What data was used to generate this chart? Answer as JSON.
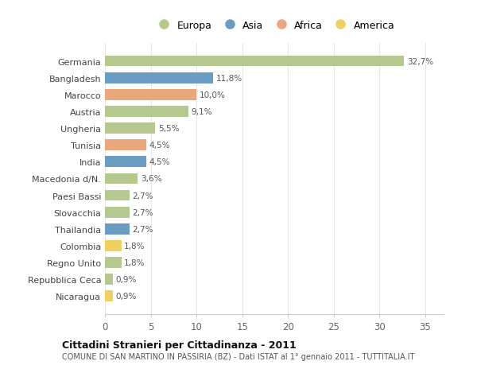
{
  "categories": [
    "Germania",
    "Bangladesh",
    "Marocco",
    "Austria",
    "Ungheria",
    "Tunisia",
    "India",
    "Macedonia d/N.",
    "Paesi Bassi",
    "Slovacchia",
    "Thailandia",
    "Colombia",
    "Regno Unito",
    "Repubblica Ceca",
    "Nicaragua"
  ],
  "values": [
    32.7,
    11.8,
    10.0,
    9.1,
    5.5,
    4.5,
    4.5,
    3.6,
    2.7,
    2.7,
    2.7,
    1.8,
    1.8,
    0.9,
    0.9
  ],
  "labels": [
    "32,7%",
    "11,8%",
    "10,0%",
    "9,1%",
    "5,5%",
    "4,5%",
    "4,5%",
    "3,6%",
    "2,7%",
    "2,7%",
    "2,7%",
    "1,8%",
    "1,8%",
    "0,9%",
    "0,9%"
  ],
  "continents": [
    "Europa",
    "Asia",
    "Africa",
    "Europa",
    "Europa",
    "Africa",
    "Asia",
    "Europa",
    "Europa",
    "Europa",
    "Asia",
    "America",
    "Europa",
    "Europa",
    "America"
  ],
  "continent_colors": {
    "Europa": "#b5c98e",
    "Asia": "#6b9dc2",
    "Africa": "#e8a87c",
    "America": "#f0d060"
  },
  "legend_items": [
    "Europa",
    "Asia",
    "Africa",
    "America"
  ],
  "title": "Cittadini Stranieri per Cittadinanza - 2011",
  "subtitle": "COMUNE DI SAN MARTINO IN PASSIRIA (BZ) - Dati ISTAT al 1° gennaio 2011 - TUTTITALIA.IT",
  "xlim": [
    0,
    37
  ],
  "xticks": [
    0,
    5,
    10,
    15,
    20,
    25,
    30,
    35
  ],
  "background_color": "#ffffff",
  "grid_color": "#e8e8e8"
}
